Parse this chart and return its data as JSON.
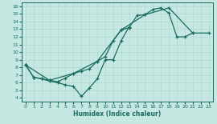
{
  "xlabel": "Humidex (Indice chaleur)",
  "bg_color": "#c5e8e3",
  "line_color": "#1a6b60",
  "grid_color": "#b0d8d0",
  "xlim": [
    -0.5,
    23.5
  ],
  "ylim": [
    3.5,
    16.5
  ],
  "xticks": [
    0,
    1,
    2,
    3,
    4,
    5,
    6,
    7,
    8,
    9,
    10,
    11,
    12,
    13,
    14,
    15,
    16,
    17,
    18,
    19,
    20,
    21,
    22,
    23
  ],
  "yticks": [
    4,
    5,
    6,
    7,
    8,
    9,
    10,
    11,
    12,
    13,
    14,
    15,
    16
  ],
  "line1_x": [
    0,
    1,
    2,
    3,
    4,
    5,
    6,
    7,
    8,
    9,
    10,
    11,
    12,
    13,
    14,
    15,
    16,
    17,
    18,
    19,
    20,
    21
  ],
  "line1_y": [
    8.3,
    6.7,
    6.5,
    6.3,
    6.1,
    6.6,
    7.2,
    7.5,
    7.8,
    8.8,
    9.4,
    11.5,
    12.9,
    13.2,
    14.8,
    14.9,
    15.6,
    15.8,
    15.1,
    12.0,
    12.0,
    12.5
  ],
  "line2_x": [
    0,
    1,
    2,
    3,
    4,
    5,
    6,
    7,
    8,
    9,
    10,
    11,
    12,
    13
  ],
  "line2_y": [
    8.3,
    6.7,
    6.5,
    6.2,
    6.0,
    5.7,
    5.5,
    4.2,
    5.3,
    6.5,
    9.0,
    9.0,
    11.5,
    13.3
  ],
  "line3_x": [
    0,
    3,
    6,
    9,
    12,
    15,
    18,
    21,
    23
  ],
  "line3_y": [
    8.3,
    6.3,
    7.2,
    8.8,
    12.9,
    14.9,
    15.8,
    12.5,
    12.5
  ]
}
